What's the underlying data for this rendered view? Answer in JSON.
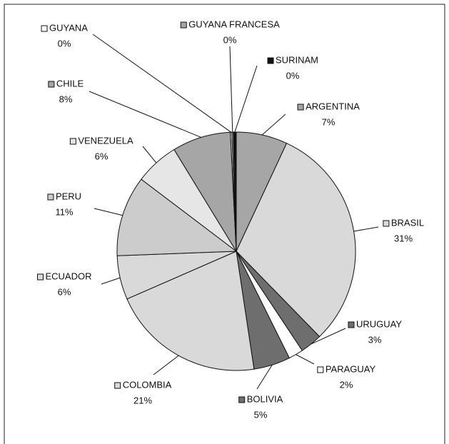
{
  "chart_data": {
    "type": "pie",
    "categories": [
      "ARGENTINA",
      "BRASIL",
      "URUGUAY",
      "PARAGUAY",
      "BOLIVIA",
      "COLOMBIA",
      "ECUADOR",
      "PERU",
      "VENEZUELA",
      "CHILE",
      "GUYANA",
      "GUYANA FRANCESA",
      "SURINAM"
    ],
    "values": [
      7,
      31,
      3,
      2,
      5,
      21,
      6,
      11,
      6,
      8,
      0.2,
      0.2,
      0.4
    ],
    "value_labels": [
      "7%",
      "31%",
      "3%",
      "2%",
      "5%",
      "21%",
      "6%",
      "11%",
      "6%",
      "8%",
      "0%",
      "0%",
      "0%"
    ],
    "colors": [
      "#a6a6a6",
      "#d9d9d9",
      "#6e6e6e",
      "#ffffff",
      "#6e6e6e",
      "#d9d9d9",
      "#d9d9d9",
      "#cccccc",
      "#e6e6e6",
      "#a6a6a6",
      "#ffffff",
      "#a6a6a6",
      "#111111"
    ]
  }
}
